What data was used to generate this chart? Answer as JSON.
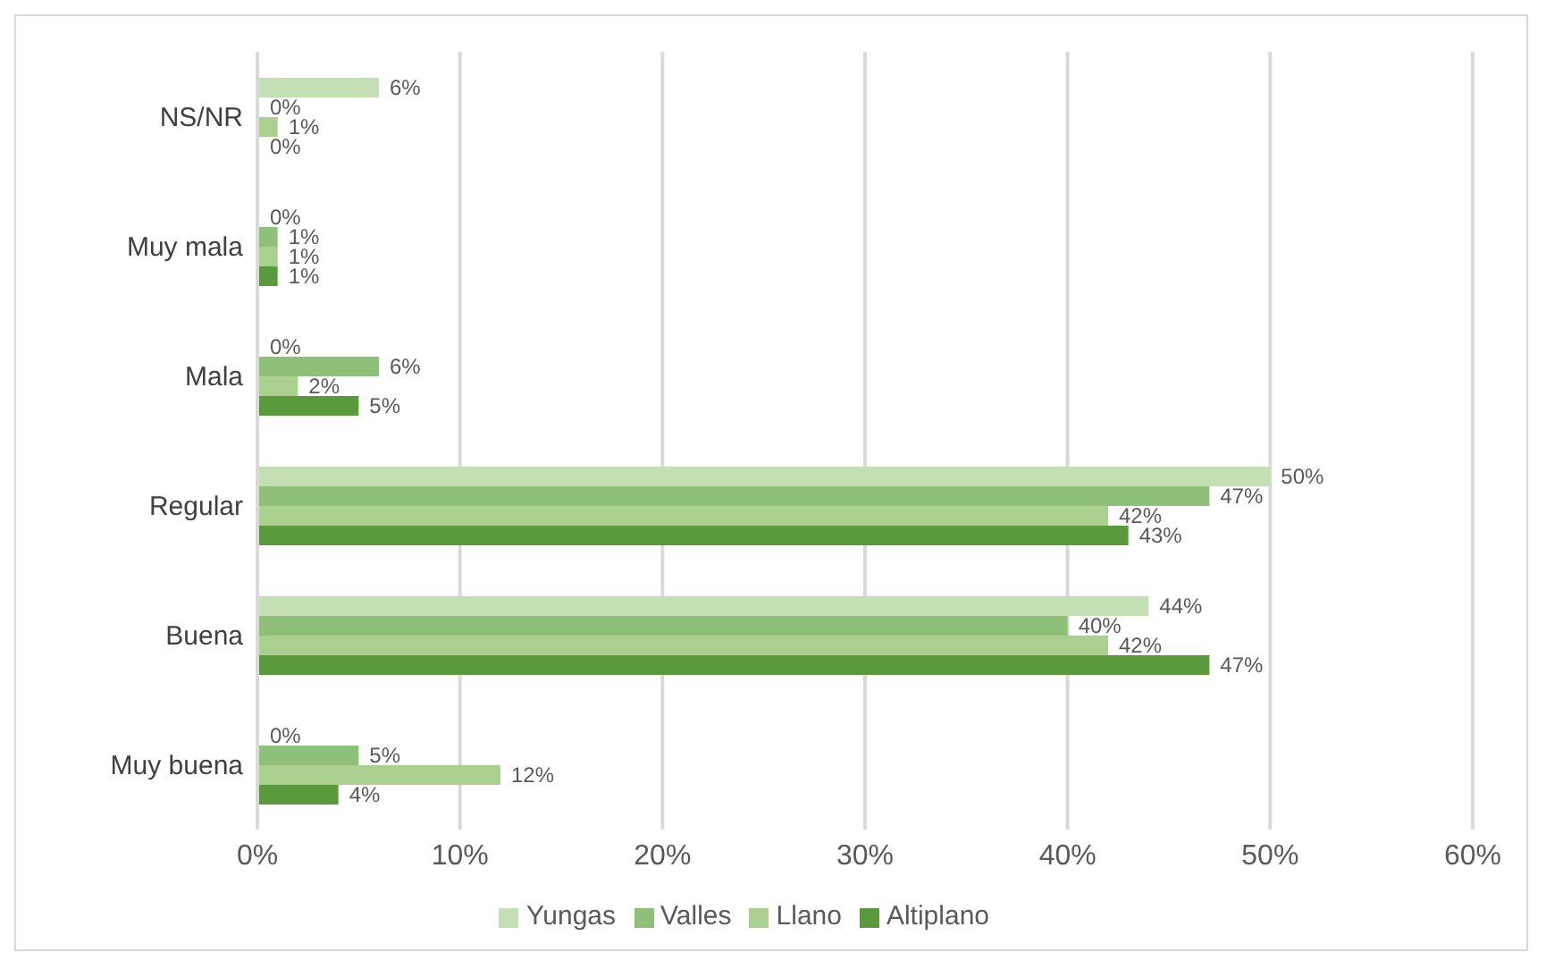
{
  "chart_data": {
    "type": "bar",
    "orientation": "horizontal",
    "categories": [
      "NS/NR",
      "Muy mala",
      "Mala",
      "Regular",
      "Buena",
      "Muy buena"
    ],
    "series": [
      {
        "name": "Yungas",
        "color": "#c5dfb5",
        "values": [
          6,
          0,
          0,
          50,
          44,
          0
        ],
        "value_labels": [
          "6%",
          "0%",
          "0%",
          "50%",
          "44%",
          "0%"
        ]
      },
      {
        "name": "Valles",
        "color": "#8fc07a",
        "values": [
          0,
          1,
          6,
          47,
          40,
          5
        ],
        "value_labels": [
          "0%",
          "1%",
          "6%",
          "47%",
          "40%",
          "5%"
        ]
      },
      {
        "name": "Llano",
        "color": "#a9d08e",
        "values": [
          1,
          1,
          2,
          42,
          42,
          12
        ],
        "value_labels": [
          "1%",
          "1%",
          "2%",
          "42%",
          "42%",
          "12%"
        ]
      },
      {
        "name": "Altiplano",
        "color": "#5b9a3c",
        "values": [
          0,
          1,
          5,
          43,
          47,
          4
        ],
        "value_labels": [
          "0%",
          "1%",
          "5%",
          "43%",
          "47%",
          "4%"
        ]
      }
    ],
    "xlim": [
      0,
      60
    ],
    "xticks": [
      {
        "value": 0,
        "label": "0%"
      },
      {
        "value": 10,
        "label": "10%"
      },
      {
        "value": 20,
        "label": "20%"
      },
      {
        "value": 30,
        "label": "30%"
      },
      {
        "value": 40,
        "label": "40%"
      },
      {
        "value": 50,
        "label": "50%"
      },
      {
        "value": 60,
        "label": "60%"
      }
    ],
    "grid": "x",
    "legend": "bottom"
  }
}
